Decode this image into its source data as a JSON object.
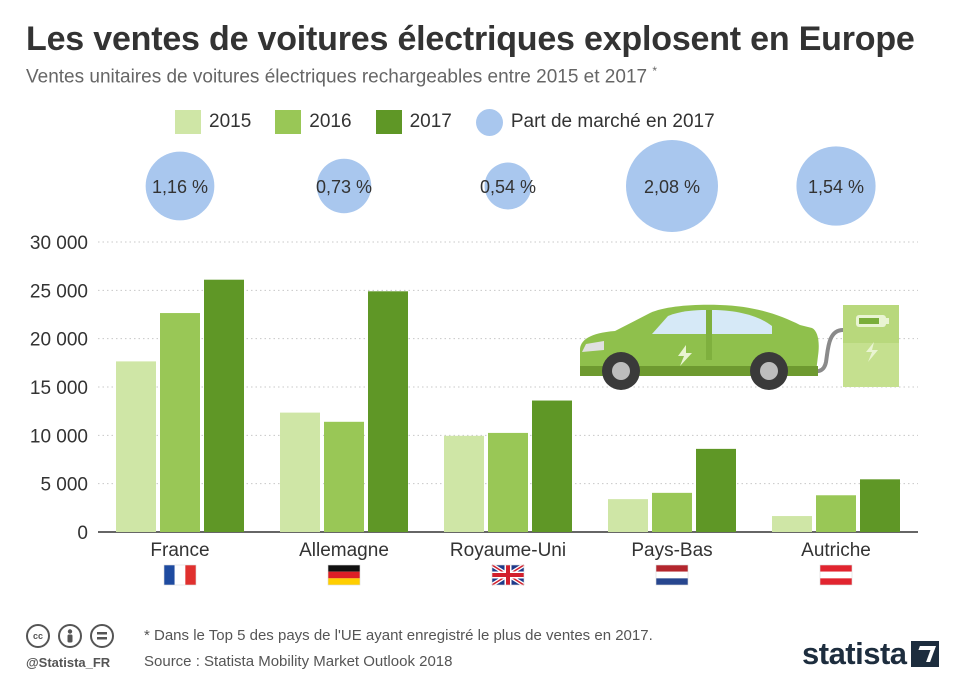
{
  "title": "Les ventes de voitures électriques explosent en Europe",
  "subtitle": "Ventes unitaires de voitures électriques rechargeables entre 2015 et 2017",
  "subtitle_mark": "*",
  "legend": [
    {
      "label": "2015",
      "color": "#cfe6a6",
      "shape": "square"
    },
    {
      "label": "2016",
      "color": "#99c756",
      "shape": "square"
    },
    {
      "label": "2017",
      "color": "#5f9726",
      "shape": "square"
    },
    {
      "label": "Part de marché en 2017",
      "color": "#a9c7ee",
      "shape": "circle"
    }
  ],
  "chart_data": {
    "type": "bar",
    "categories": [
      "France",
      "Allemagne",
      "Royaume-Uni",
      "Pays-Bas",
      "Autriche"
    ],
    "series": [
      {
        "name": "2015",
        "color": "#cfe6a6",
        "values": [
          17650,
          12350,
          9950,
          3400,
          1650
        ]
      },
      {
        "name": "2016",
        "color": "#99c756",
        "values": [
          22650,
          11400,
          10250,
          4050,
          3800
        ]
      },
      {
        "name": "2017",
        "color": "#5f9726",
        "values": [
          26100,
          24900,
          13600,
          8600,
          5450
        ]
      }
    ],
    "market_share": {
      "name": "Part de marché en 2017",
      "color": "#a9c7ee",
      "values": [
        1.16,
        0.73,
        0.54,
        2.08,
        1.54
      ],
      "labels": [
        "1,16 %",
        "0,73 %",
        "0,54 %",
        "2,08 %",
        "1,54 %"
      ]
    },
    "ylim": [
      0,
      30000
    ],
    "yticks": [
      0,
      5000,
      10000,
      15000,
      20000,
      25000,
      30000
    ],
    "ytick_labels": [
      "0",
      "5 000",
      "10 000",
      "15 000",
      "20 000",
      "25 000",
      "30 000"
    ],
    "grid": true,
    "legend_position": "top"
  },
  "flags": [
    "france-flag-icon",
    "germany-flag-icon",
    "uk-flag-icon",
    "netherlands-flag-icon",
    "austria-flag-icon"
  ],
  "illustration": "electric-car-charging-icon",
  "footer": {
    "note": "* Dans le Top 5 des pays de l'UE ayant enregistré le plus de ventes en 2017.",
    "source": "Source : Statista Mobility Market Outlook 2018",
    "handle": "@Statista_FR",
    "brand": "statista",
    "license_icons": [
      "cc-icon",
      "by-icon",
      "nd-icon"
    ]
  }
}
